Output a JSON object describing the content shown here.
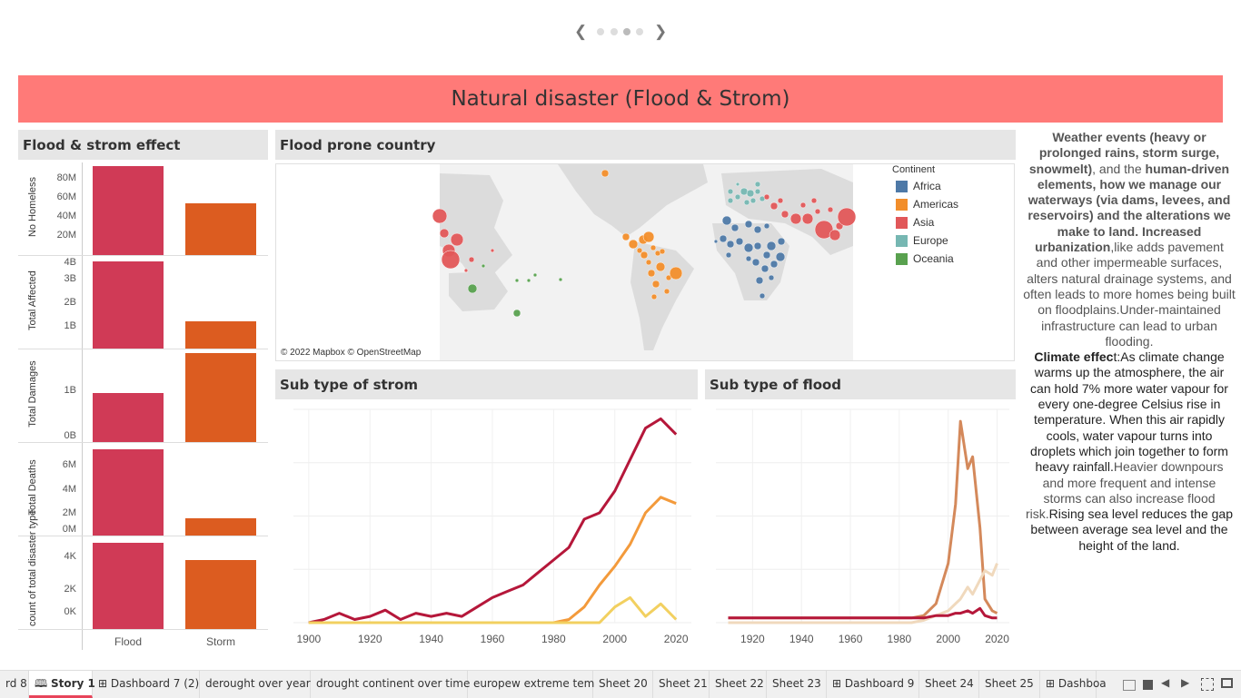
{
  "story_nav": {
    "dots": 4,
    "active_dot": 3
  },
  "title": "Natural disaster (Flood & Strom)",
  "left_panel": {
    "heading": "Flood & strom effect",
    "categories": [
      "Flood",
      "Storm"
    ],
    "colors": {
      "flood": "#d03a56",
      "storm": "#dc5c20"
    },
    "rows": [
      {
        "label": "No Homeless",
        "ticks": [
          "80M",
          "60M",
          "40M",
          "20M"
        ],
        "flood": 95,
        "storm": 55
      },
      {
        "label": "Total Affected",
        "ticks": [
          "4B",
          "3B",
          "2B",
          "1B"
        ],
        "flood": 4.2,
        "storm": 1.3
      },
      {
        "label": "Total Damages",
        "ticks": [
          "1B",
          "0B"
        ],
        "flood": 1.1,
        "storm": 2.0
      },
      {
        "label": "Total Deaths",
        "ticks": [
          "6M",
          "4M",
          "2M",
          "0M"
        ],
        "flood": 7,
        "storm": 1.4
      },
      {
        "label": "count of total disaster type",
        "ticks": [
          "4K",
          "2K",
          "0K"
        ],
        "flood": 5.5,
        "storm": 4.4
      }
    ]
  },
  "map_panel": {
    "heading": "Flood prone country",
    "attribution": "© 2022 Mapbox © OpenStreetMap",
    "legend_title": "Continent",
    "legend": [
      {
        "name": "Africa",
        "color": "#4e79a7"
      },
      {
        "name": "Americas",
        "color": "#f28e2b"
      },
      {
        "name": "Asia",
        "color": "#e15759"
      },
      {
        "name": "Europe",
        "color": "#76b7b2"
      },
      {
        "name": "Oceania",
        "color": "#59a14f"
      }
    ]
  },
  "storm_panel": {
    "heading": "Sub type of strom",
    "x_ticks": [
      "1900",
      "1920",
      "1940",
      "1960",
      "1980",
      "2000",
      "2020"
    ]
  },
  "flood_panel": {
    "heading": "Sub type of flood",
    "x_ticks": [
      "1920",
      "1940",
      "1960",
      "1980",
      "2000",
      "2020"
    ]
  },
  "description": {
    "p1_b1": "Weather events (heavy or prolonged rains, storm surge, snowmelt)",
    "p1_t1": ", and the ",
    "p1_b2": "human-driven elements, how we manage our waterways (via dams, levees, and reservoirs) and the alterations we make to land. Increased urbanization",
    "p1_t2": ",like adds pavement and other impermeable surfaces, alters natural drainage systems, and often leads to more homes being built on floodplains.Under-maintained infrastructure can lead to urban flooding.",
    "p2_b": "Climate effec",
    "p2_t": "t:As climate change warms up the atmosphere, the air can hold 7% more water vapour for every one-degree Celsius rise in temperature. When this air rapidly cools, water vapour turns into droplets which join together to form heavy rainfall.",
    "p2_t2": "Heavier downpours and more frequent and intense storms can also increase flood risk.",
    "p2_t3": "Rising sea level reduces the gap between average sea level and the height of the land."
  },
  "tabs": [
    {
      "label": "rd 8",
      "icon": "none"
    },
    {
      "label": "Story 1",
      "icon": "book-icon",
      "active": true
    },
    {
      "label": "Dashboard 7 (2)",
      "icon": "grid-icon"
    },
    {
      "label": "derought over year",
      "icon": "none"
    },
    {
      "label": "drought continent over time",
      "icon": "none"
    },
    {
      "label": "europew extreme tem",
      "icon": "none"
    },
    {
      "label": "Sheet 20",
      "icon": "none"
    },
    {
      "label": "Sheet 21",
      "icon": "none"
    },
    {
      "label": "Sheet 22",
      "icon": "none"
    },
    {
      "label": "Sheet 23",
      "icon": "none"
    },
    {
      "label": "Dashboard 9",
      "icon": "grid-icon"
    },
    {
      "label": "Sheet 24",
      "icon": "none"
    },
    {
      "label": "Sheet 25",
      "icon": "none"
    },
    {
      "label": "Dashboa",
      "icon": "grid-icon"
    }
  ],
  "chart_data": [
    {
      "type": "line",
      "title": "Sub type of strom",
      "x": [
        1900,
        1905,
        1910,
        1915,
        1920,
        1925,
        1930,
        1935,
        1940,
        1945,
        1950,
        1955,
        1960,
        1965,
        1970,
        1975,
        1980,
        1985,
        1990,
        1995,
        2000,
        2005,
        2010,
        2015,
        2020
      ],
      "xlim": [
        1895,
        2025
      ],
      "series": [
        {
          "color": "#b5173a",
          "values": [
            0,
            1,
            3,
            1,
            2,
            4,
            1,
            3,
            2,
            3,
            2,
            5,
            8,
            10,
            12,
            16,
            20,
            24,
            33,
            35,
            42,
            52,
            62,
            65,
            60
          ]
        },
        {
          "color": "#f39a3b",
          "values": [
            0,
            0,
            0,
            0,
            0,
            0,
            0,
            0,
            0,
            0,
            0,
            0,
            0,
            0,
            0,
            0,
            0,
            1,
            5,
            12,
            18,
            25,
            35,
            40,
            38
          ]
        },
        {
          "color": "#f2d060",
          "values": [
            0,
            0,
            0,
            0,
            0,
            0,
            0,
            0,
            0,
            0,
            0,
            0,
            0,
            0,
            0,
            0,
            0,
            0,
            0,
            0,
            5,
            8,
            2,
            6,
            1
          ]
        }
      ]
    },
    {
      "type": "line",
      "title": "Sub type of flood",
      "x": [
        1910,
        1920,
        1930,
        1940,
        1950,
        1960,
        1970,
        1980,
        1985,
        1990,
        1995,
        2000,
        2003,
        2005,
        2008,
        2010,
        2013,
        2015,
        2018,
        2020
      ],
      "xlim": [
        1905,
        2025
      ],
      "series": [
        {
          "color": "#d4895b",
          "values": [
            2,
            2,
            2,
            2,
            2,
            2,
            2,
            2,
            2,
            3,
            8,
            25,
            50,
            85,
            65,
            70,
            40,
            10,
            5,
            4
          ]
        },
        {
          "color": "#f0d9bd",
          "values": [
            0,
            0,
            0,
            0,
            0,
            0,
            0,
            0,
            0,
            1,
            3,
            5,
            8,
            10,
            15,
            12,
            18,
            22,
            20,
            25
          ]
        },
        {
          "color": "#b5173a",
          "values": [
            2,
            2,
            2,
            2,
            2,
            2,
            2,
            2,
            2,
            2,
            3,
            3,
            4,
            4,
            5,
            4,
            6,
            3,
            2,
            2
          ]
        }
      ]
    }
  ]
}
